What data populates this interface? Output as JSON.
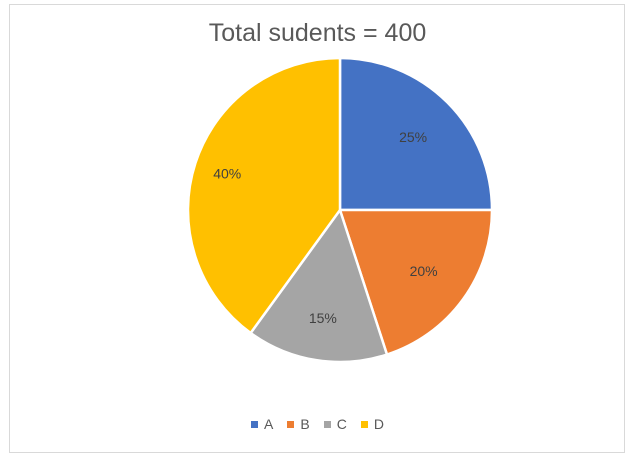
{
  "chart_data": {
    "type": "pie",
    "title": "Total sudents = 400",
    "categories": [
      "A",
      "B",
      "C",
      "D"
    ],
    "values": [
      25,
      20,
      15,
      40
    ],
    "labels": [
      "25%",
      "20%",
      "15%",
      "40%"
    ],
    "colors": [
      "#4472c4",
      "#ed7d31",
      "#a5a5a5",
      "#ffc000"
    ],
    "legend_position": "bottom"
  },
  "legend": [
    {
      "label": "A",
      "color": "#4472c4"
    },
    {
      "label": "B",
      "color": "#ed7d31"
    },
    {
      "label": "C",
      "color": "#a5a5a5"
    },
    {
      "label": "D",
      "color": "#ffc000"
    }
  ]
}
